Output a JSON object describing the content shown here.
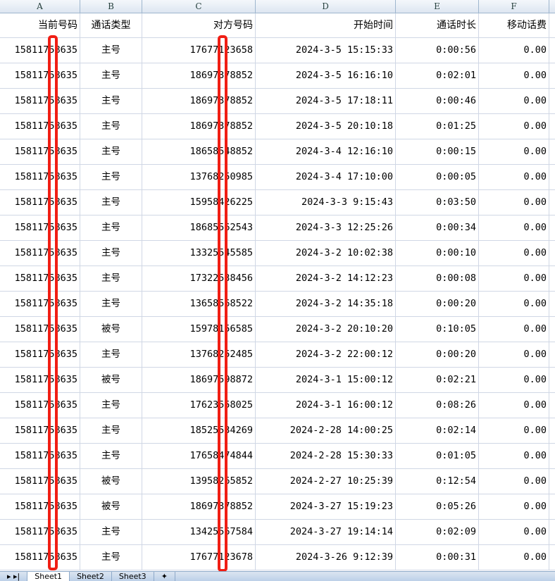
{
  "column_letters": [
    "A",
    "B",
    "C",
    "D",
    "E",
    "F"
  ],
  "headers": [
    "当前号码",
    "通话类型",
    "对方号码",
    "开始时间",
    "通话时长",
    "移动话费"
  ],
  "rows": [
    [
      "15811758635",
      "主号",
      "17677123658",
      "2024-3-5 15:15:33",
      "0:00:56",
      "0.00"
    ],
    [
      "15811758635",
      "主号",
      "18697378852",
      "2024-3-5 16:16:10",
      "0:02:01",
      "0.00"
    ],
    [
      "15811758635",
      "主号",
      "18697378852",
      "2024-3-5 17:18:11",
      "0:00:46",
      "0.00"
    ],
    [
      "15811758635",
      "主号",
      "18697378852",
      "2024-3-5 20:10:18",
      "0:01:25",
      "0.00"
    ],
    [
      "15811758635",
      "主号",
      "18658548852",
      "2024-3-4 12:16:10",
      "0:00:15",
      "0.00"
    ],
    [
      "15811758635",
      "主号",
      "13768250985",
      "2024-3-4 17:10:00",
      "0:00:05",
      "0.00"
    ],
    [
      "15811758635",
      "主号",
      "15958426225",
      "2024-3-3 9:15:43",
      "0:03:50",
      "0.00"
    ],
    [
      "15811758635",
      "主号",
      "18685562543",
      "2024-3-3 12:25:26",
      "0:00:34",
      "0.00"
    ],
    [
      "15811758635",
      "主号",
      "13325545585",
      "2024-3-2 10:02:38",
      "0:00:10",
      "0.00"
    ],
    [
      "15811758635",
      "主号",
      "17322538456",
      "2024-3-2 14:12:23",
      "0:00:08",
      "0.00"
    ],
    [
      "15811758635",
      "主号",
      "13658568522",
      "2024-3-2 14:35:18",
      "0:00:20",
      "0.00"
    ],
    [
      "15811758635",
      "被号",
      "15978156585",
      "2024-3-2 20:10:20",
      "0:10:05",
      "0.00"
    ],
    [
      "15811758635",
      "主号",
      "13768252485",
      "2024-3-2 22:00:12",
      "0:00:20",
      "0.00"
    ],
    [
      "15811758635",
      "被号",
      "18697598872",
      "2024-3-1 15:00:12",
      "0:02:21",
      "0.00"
    ],
    [
      "15811758635",
      "主号",
      "17623558025",
      "2024-3-1 16:00:12",
      "0:08:26",
      "0.00"
    ],
    [
      "15811758635",
      "主号",
      "18525534269",
      "2024-2-28 14:00:25",
      "0:02:14",
      "0.00"
    ],
    [
      "15811758635",
      "主号",
      "17658474844",
      "2024-2-28 15:30:33",
      "0:01:05",
      "0.00"
    ],
    [
      "15811758635",
      "被号",
      "13958265852",
      "2024-2-27 10:25:39",
      "0:12:54",
      "0.00"
    ],
    [
      "15811758635",
      "被号",
      "18697378852",
      "2024-3-27 15:19:23",
      "0:05:26",
      "0.00"
    ],
    [
      "15811758635",
      "主号",
      "13425567584",
      "2024-3-27 19:14:14",
      "0:02:09",
      "0.00"
    ],
    [
      "15811758635",
      "主号",
      "17677123678",
      "2024-3-26 9:12:39",
      "0:00:31",
      "0.00"
    ]
  ],
  "sheet_tabs": [
    "Sheet1",
    "Sheet2",
    "Sheet3"
  ],
  "active_sheet": "Sheet1",
  "redaction_color": "#f01e14"
}
